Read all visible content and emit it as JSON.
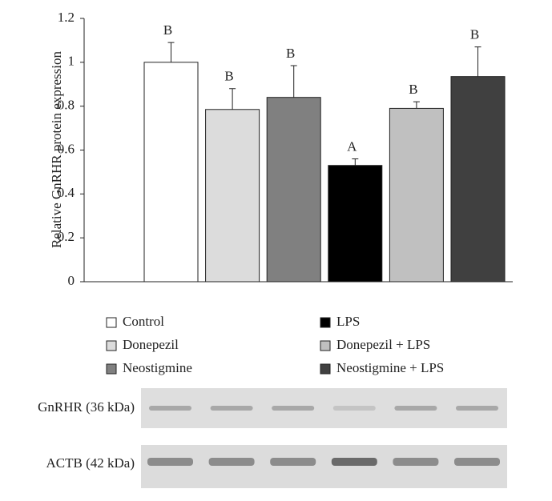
{
  "chart_data": {
    "type": "bar",
    "y_label": "Relative GnRHR protein expression",
    "categories": [
      "Control",
      "Donepezil",
      "Neostigmine",
      "LPS",
      "Donepezil + LPS",
      "Neostigmine + LPS"
    ],
    "values": [
      1.0,
      0.785,
      0.84,
      0.53,
      0.79,
      0.935
    ],
    "errors": [
      0.09,
      0.095,
      0.145,
      0.03,
      0.03,
      0.135
    ],
    "significance_labels": [
      "B",
      "B",
      "B",
      "A",
      "B",
      "B"
    ],
    "colors": [
      "#ffffff",
      "#dcdcdc",
      "#808080",
      "#000000",
      "#c0c0c0",
      "#404040"
    ],
    "ylim": [
      0,
      1.2
    ],
    "yticks": [
      0,
      0.2,
      0.4,
      0.6,
      0.8,
      1,
      1.2
    ],
    "grid": false,
    "blot_labels": [
      "GnRHR (36 kDa)",
      "ACTB (42 kDa)"
    ]
  }
}
